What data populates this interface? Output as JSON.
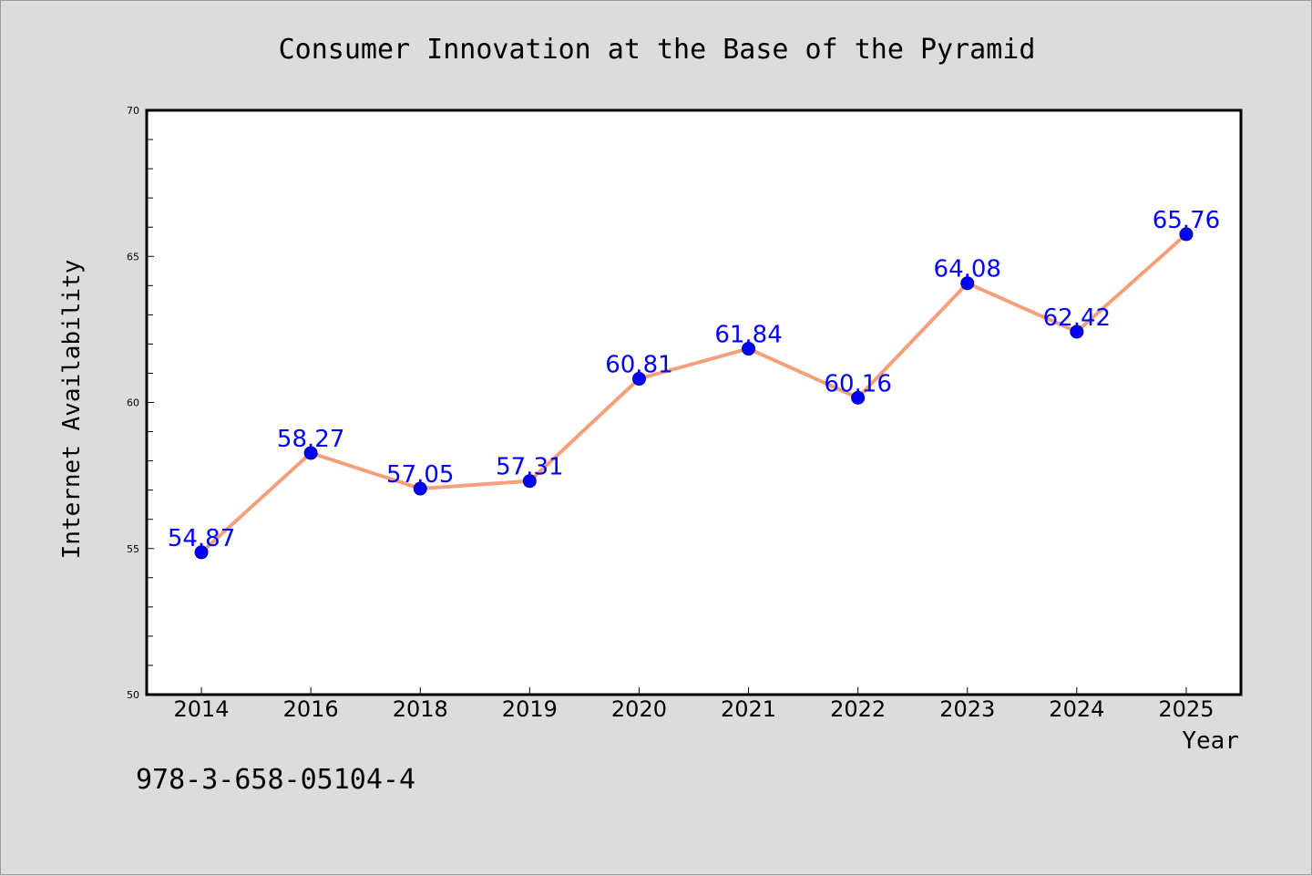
{
  "chart_data": {
    "type": "line",
    "title": "Consumer Innovation at the Base of the Pyramid",
    "xlabel": "Year",
    "ylabel": "Internet Availability",
    "categories": [
      "2014",
      "2016",
      "2018",
      "2019",
      "2020",
      "2021",
      "2022",
      "2023",
      "2024",
      "2025"
    ],
    "series": [
      {
        "values": [
          54.87,
          58.27,
          57.05,
          57.31,
          60.81,
          61.84,
          60.16,
          64.08,
          62.42,
          65.76
        ],
        "line_color": "#f4a07a",
        "marker_color": "#0000ff",
        "label_color": "#0000ff"
      }
    ],
    "data_labels": [
      "54.87",
      "58.27",
      "57.05",
      "57.31",
      "60.81",
      "61.84",
      "60.16",
      "64.08",
      "62.42",
      "65.76"
    ],
    "ylim": [
      50,
      70
    ],
    "yticks": [
      "50",
      "55",
      "60",
      "65",
      "70"
    ],
    "grid": false,
    "legend": "none"
  },
  "footer": {
    "isbn": "978-3-658-05104-4"
  }
}
